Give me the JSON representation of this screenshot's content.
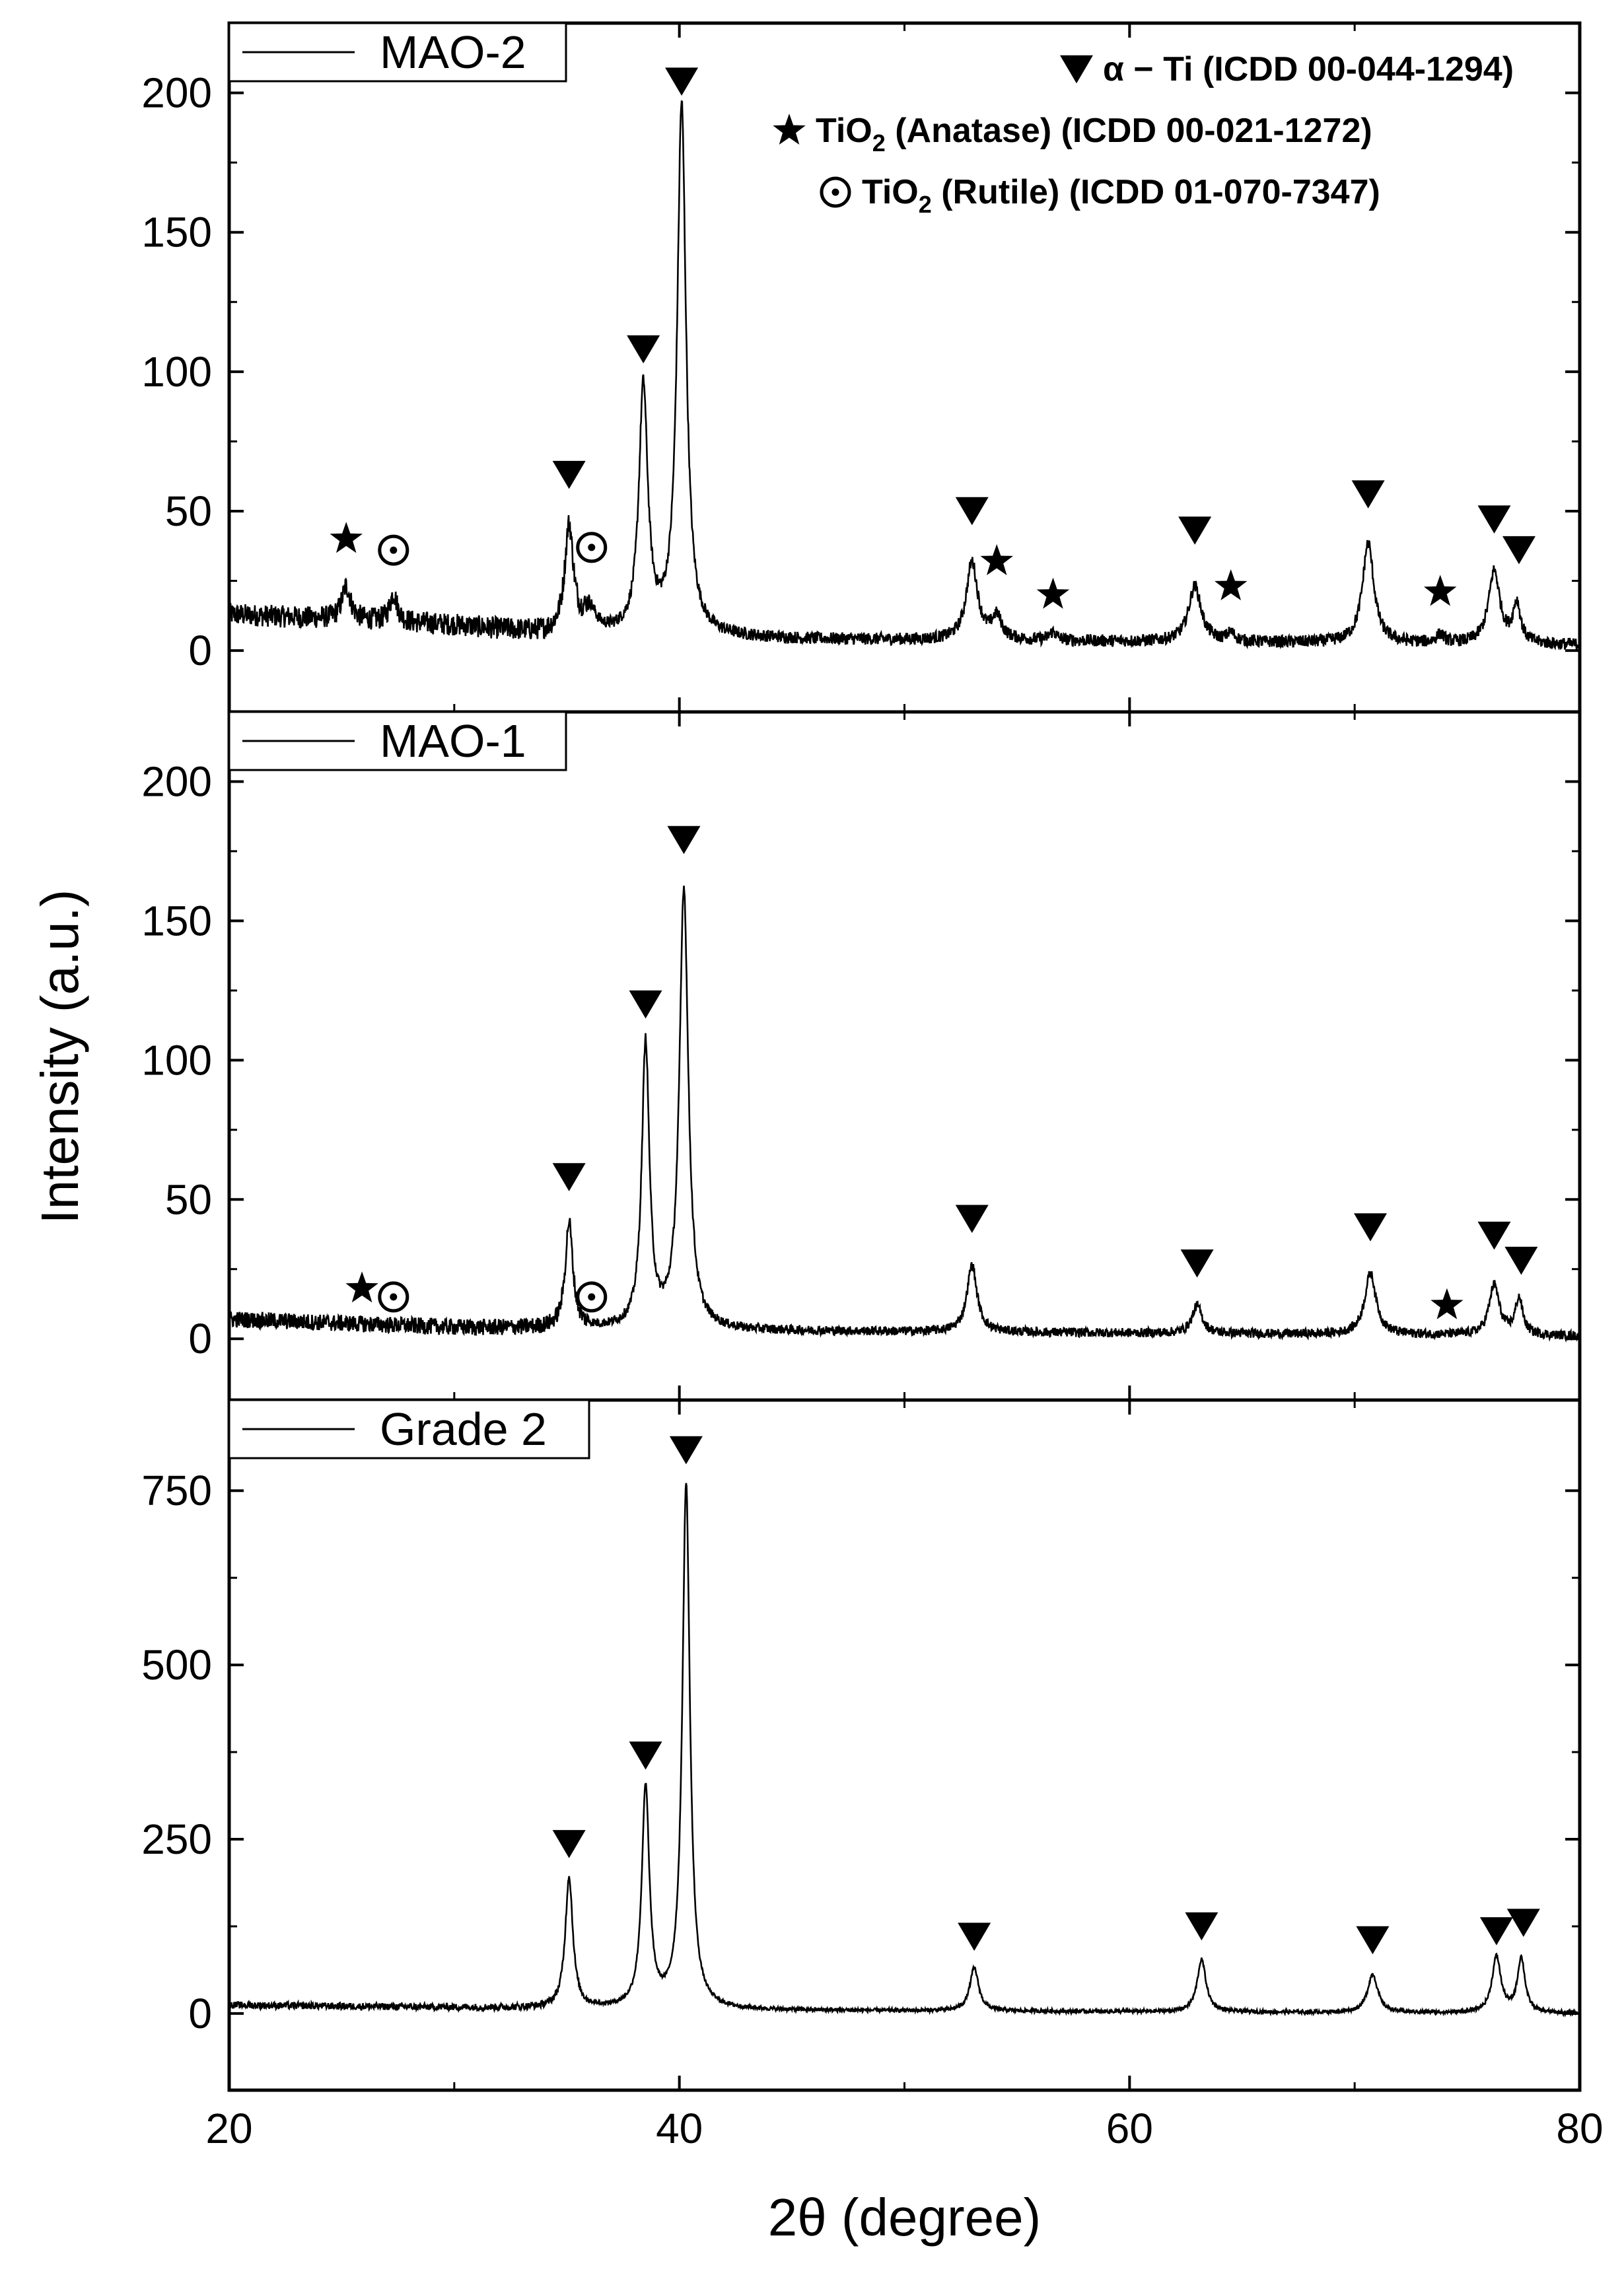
{
  "chart_data": {
    "type": "line",
    "layout": "stacked",
    "xlabel": "2θ (degree)",
    "ylabel": "Intensity (a.u.)",
    "xlim": [
      20,
      80
    ],
    "xticks": [
      20,
      40,
      60,
      80
    ],
    "phases": [
      {
        "id": "alpha",
        "symbol": "triangle-down",
        "label": "α − Ti (ICDD 00-044-1294)"
      },
      {
        "id": "anatase",
        "symbol": "star",
        "label_main": "TiO",
        "label_sub": "2",
        "label_rest": " (Anatase) (ICDD 00-021-1272)"
      },
      {
        "id": "rutile",
        "symbol": "circle-dot",
        "label_main": "TiO",
        "label_sub": "2",
        "label_rest": " (Rutile) (ICDD 01-070-7347)"
      }
    ],
    "panels": [
      {
        "name": "MAO-2",
        "ylim": [
          -22,
          225
        ],
        "yticks": [
          0,
          50,
          100,
          150,
          200
        ],
        "baseline": [
          [
            20,
            13
          ],
          [
            30,
            9
          ],
          [
            34,
            6
          ],
          [
            46,
            4
          ],
          [
            80,
            2
          ]
        ],
        "noise": 4,
        "peaks": [
          [
            25.2,
            12,
            0.35
          ],
          [
            27.3,
            10,
            0.3
          ],
          [
            35.1,
            38,
            0.35
          ],
          [
            36.0,
            8,
            0.5
          ],
          [
            38.4,
            88,
            0.35
          ],
          [
            40.1,
            190,
            0.35
          ],
          [
            53.0,
            28,
            0.45
          ],
          [
            54.1,
            8,
            0.4
          ],
          [
            56.6,
            3,
            0.3
          ],
          [
            62.9,
            20,
            0.5
          ],
          [
            64.5,
            3,
            0.3
          ],
          [
            70.6,
            36,
            0.45
          ],
          [
            73.8,
            3,
            0.3
          ],
          [
            76.2,
            26,
            0.45
          ],
          [
            77.2,
            14,
            0.3
          ]
        ],
        "markers": [
          {
            "x": 35.1,
            "y": 63,
            "symbol": "triangle-down"
          },
          {
            "x": 38.4,
            "y": 108,
            "symbol": "triangle-down"
          },
          {
            "x": 40.1,
            "y": 204,
            "symbol": "triangle-down"
          },
          {
            "x": 53.0,
            "y": 50,
            "symbol": "triangle-down"
          },
          {
            "x": 62.9,
            "y": 43,
            "symbol": "triangle-down"
          },
          {
            "x": 70.6,
            "y": 56,
            "symbol": "triangle-down"
          },
          {
            "x": 76.2,
            "y": 47,
            "symbol": "triangle-down"
          },
          {
            "x": 77.3,
            "y": 36,
            "symbol": "triangle-down"
          },
          {
            "x": 25.2,
            "y": 40,
            "symbol": "star"
          },
          {
            "x": 54.1,
            "y": 32,
            "symbol": "star"
          },
          {
            "x": 56.6,
            "y": 20,
            "symbol": "star"
          },
          {
            "x": 64.5,
            "y": 23,
            "symbol": "star"
          },
          {
            "x": 73.8,
            "y": 21,
            "symbol": "star"
          },
          {
            "x": 27.3,
            "y": 36,
            "symbol": "circle-dot"
          },
          {
            "x": 36.1,
            "y": 37,
            "symbol": "circle-dot"
          }
        ]
      },
      {
        "name": "MAO-1",
        "ylim": [
          -22,
          225
        ],
        "yticks": [
          0,
          50,
          100,
          150,
          200
        ],
        "baseline": [
          [
            20,
            7
          ],
          [
            30,
            4
          ],
          [
            40,
            3
          ],
          [
            80,
            1
          ]
        ],
        "noise": 3,
        "peaks": [
          [
            35.1,
            38,
            0.3
          ],
          [
            38.5,
            102,
            0.3
          ],
          [
            40.2,
            158,
            0.35
          ],
          [
            53.0,
            24,
            0.4
          ],
          [
            63.0,
            10,
            0.4
          ],
          [
            70.7,
            22,
            0.45
          ],
          [
            76.2,
            18,
            0.4
          ],
          [
            77.3,
            13,
            0.3
          ]
        ],
        "markers": [
          {
            "x": 35.1,
            "y": 58,
            "symbol": "triangle-down"
          },
          {
            "x": 38.5,
            "y": 120,
            "symbol": "triangle-down"
          },
          {
            "x": 40.2,
            "y": 179,
            "symbol": "triangle-down"
          },
          {
            "x": 53.0,
            "y": 43,
            "symbol": "triangle-down"
          },
          {
            "x": 63.0,
            "y": 27,
            "symbol": "triangle-down"
          },
          {
            "x": 70.7,
            "y": 40,
            "symbol": "triangle-down"
          },
          {
            "x": 76.2,
            "y": 37,
            "symbol": "triangle-down"
          },
          {
            "x": 77.4,
            "y": 28,
            "symbol": "triangle-down"
          },
          {
            "x": 25.9,
            "y": 18,
            "symbol": "star"
          },
          {
            "x": 74.1,
            "y": 12,
            "symbol": "star"
          },
          {
            "x": 27.3,
            "y": 15,
            "symbol": "circle-dot"
          },
          {
            "x": 36.1,
            "y": 15,
            "symbol": "circle-dot"
          }
        ]
      },
      {
        "name": "Grade 2",
        "ylim": [
          -110,
          880
        ],
        "yticks": [
          0,
          250,
          500,
          750
        ],
        "baseline": [
          [
            20,
            12
          ],
          [
            40,
            5
          ],
          [
            80,
            0
          ]
        ],
        "noise": 5,
        "peaks": [
          [
            35.1,
            188,
            0.3
          ],
          [
            38.5,
            315,
            0.3
          ],
          [
            40.3,
            752,
            0.3
          ],
          [
            53.1,
            62,
            0.35
          ],
          [
            63.2,
            75,
            0.35
          ],
          [
            70.8,
            55,
            0.4
          ],
          [
            76.3,
            80,
            0.35
          ],
          [
            77.4,
            78,
            0.3
          ]
        ],
        "markers": [
          {
            "x": 35.1,
            "y": 243,
            "symbol": "triangle-down"
          },
          {
            "x": 38.5,
            "y": 370,
            "symbol": "triangle-down"
          },
          {
            "x": 40.3,
            "y": 808,
            "symbol": "triangle-down"
          },
          {
            "x": 53.1,
            "y": 110,
            "symbol": "triangle-down"
          },
          {
            "x": 63.2,
            "y": 125,
            "symbol": "triangle-down"
          },
          {
            "x": 70.8,
            "y": 105,
            "symbol": "triangle-down"
          },
          {
            "x": 76.3,
            "y": 118,
            "symbol": "triangle-down"
          },
          {
            "x": 77.5,
            "y": 130,
            "symbol": "triangle-down"
          }
        ]
      }
    ]
  }
}
